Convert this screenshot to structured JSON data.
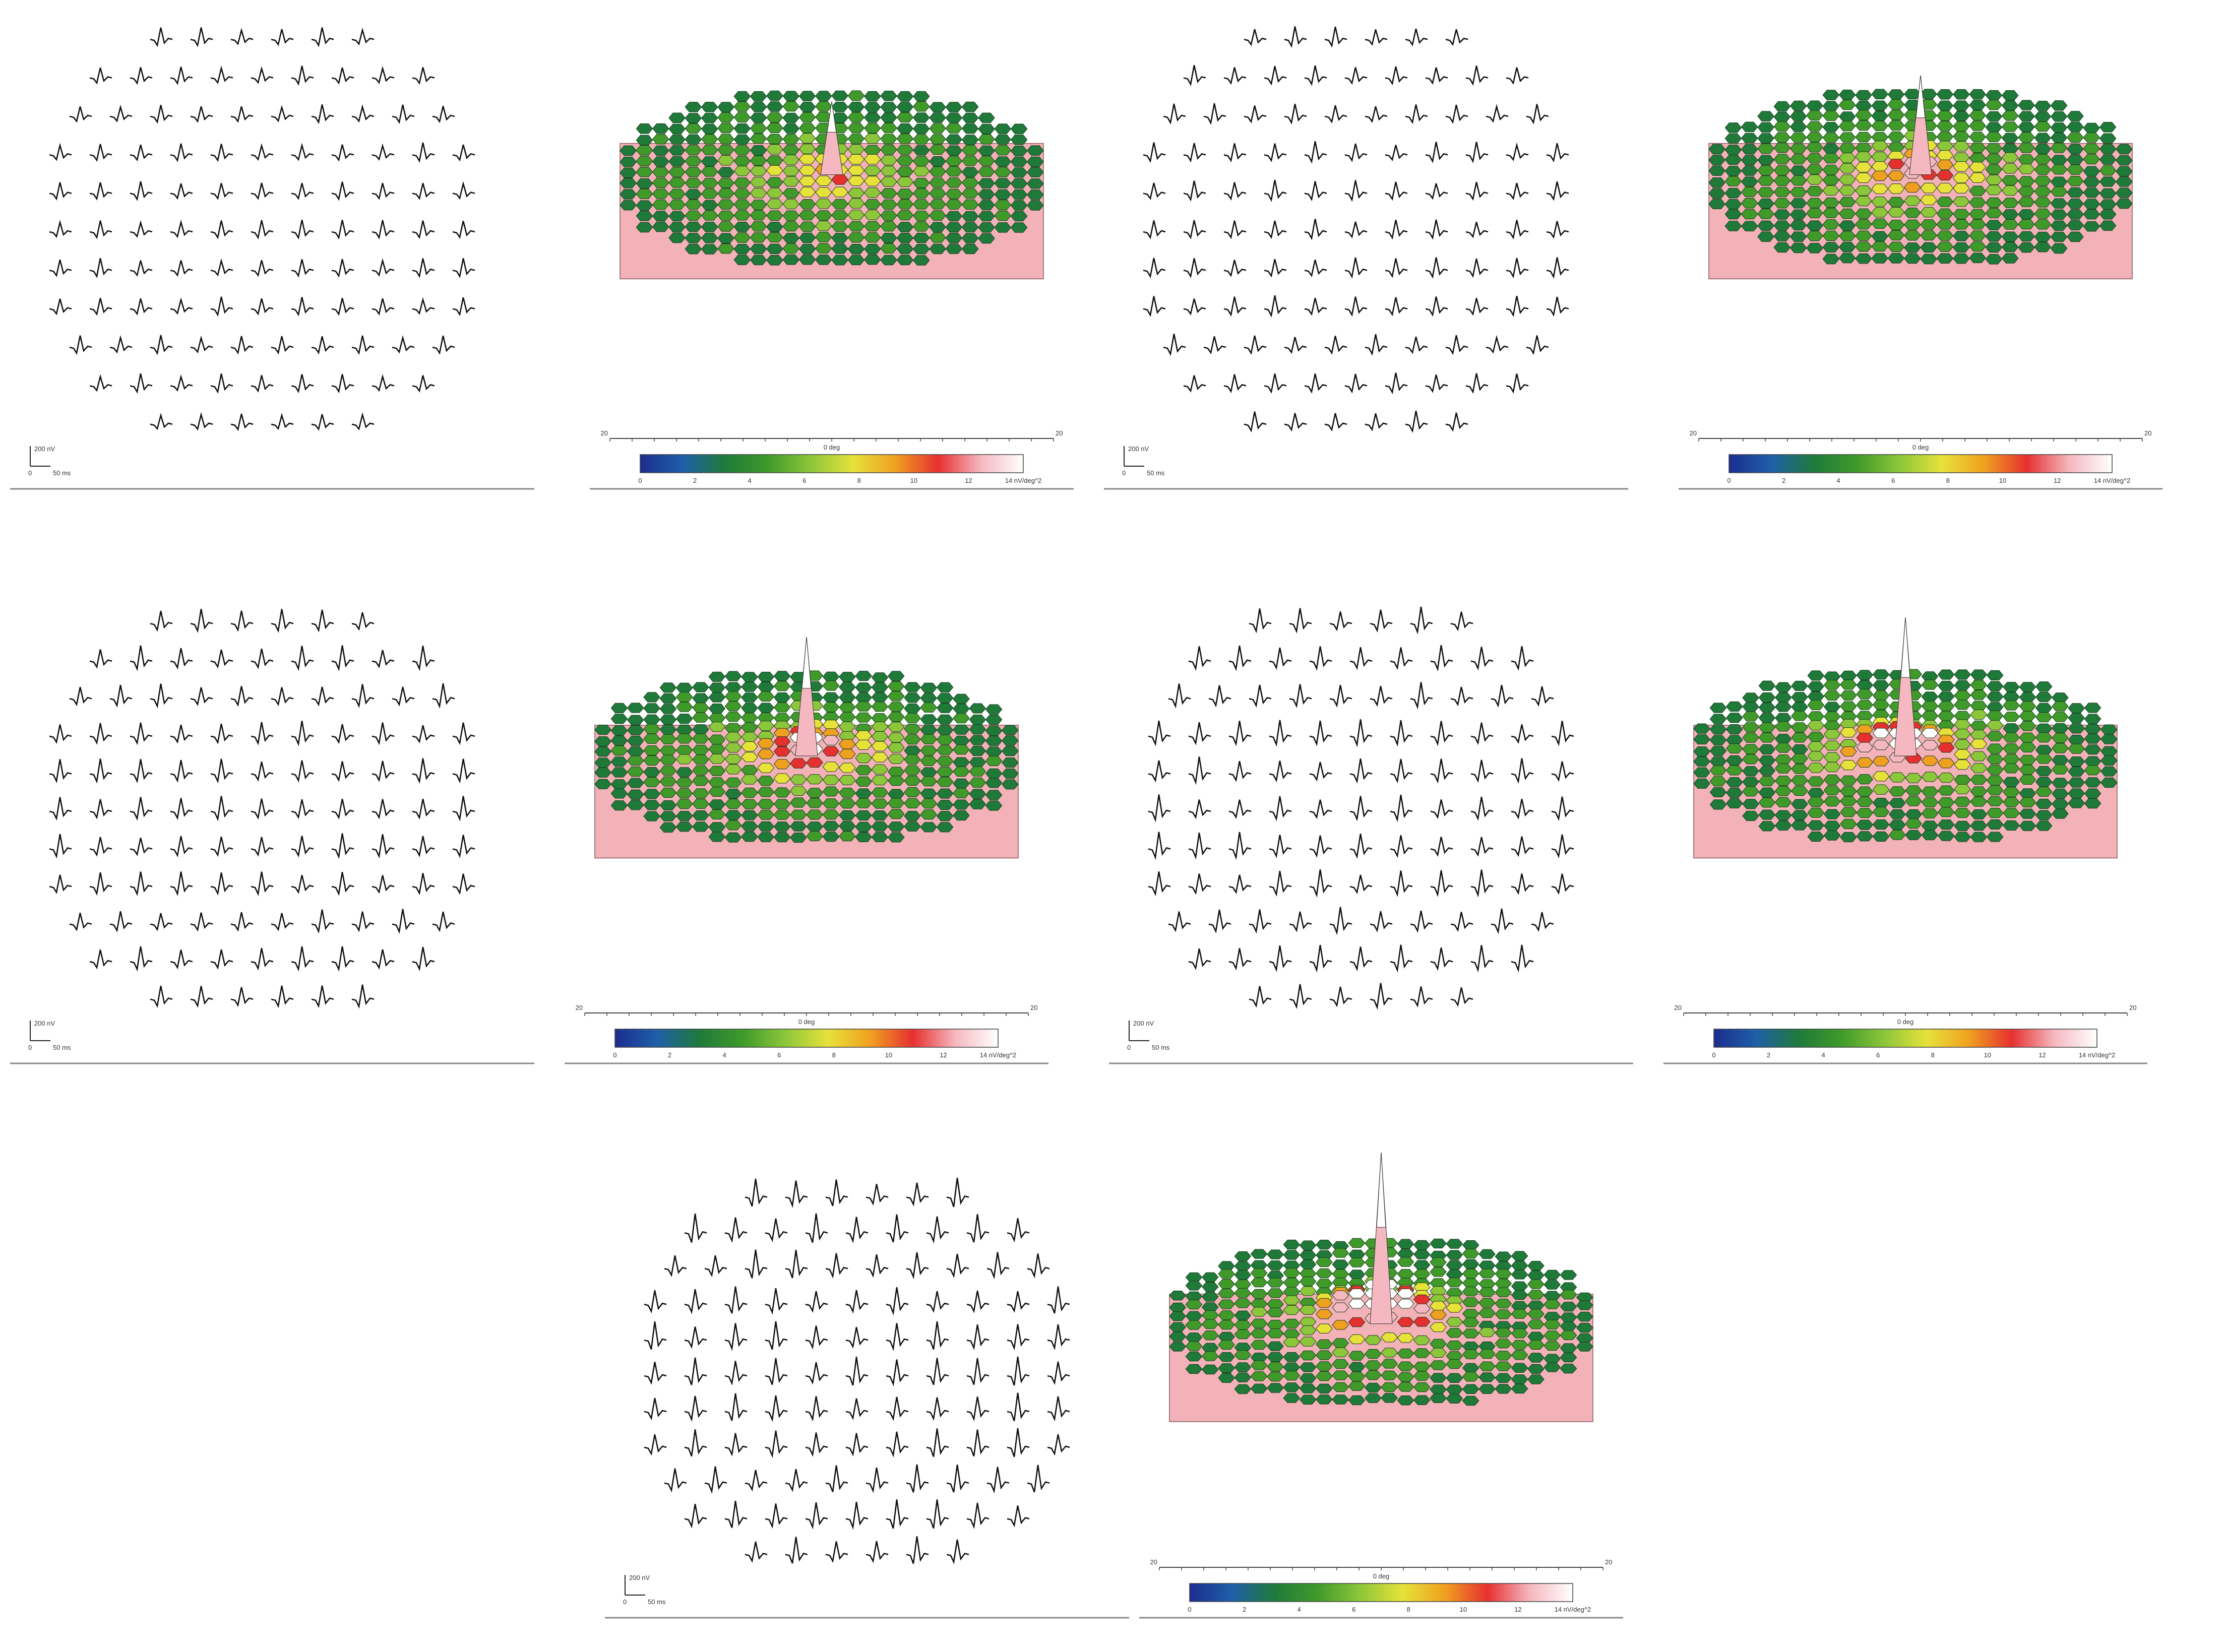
{
  "figure": {
    "scale_bar": {
      "amplitude_label": "200 nV",
      "time_label": "50 ms",
      "origin_label": "0"
    },
    "colorbar": {
      "axis_title": "0 deg",
      "axis_min_label": "20",
      "axis_max_label": "20",
      "ticks": [
        "0",
        "2",
        "4",
        "6",
        "8",
        "10",
        "12"
      ],
      "unit_label": "14 nV/deg^2",
      "colors": [
        "#1b2d8f",
        "#1f5fa8",
        "#1f7a3a",
        "#3f9a2a",
        "#8cc63a",
        "#e6e23a",
        "#f0a020",
        "#e63030",
        "#f5b8c0",
        "#ffffff"
      ]
    },
    "panels": [
      {
        "id": "A",
        "peak": 0.25,
        "waveform_amp": 0.5
      },
      {
        "id": "B",
        "peak": 0.45,
        "waveform_amp": 0.6
      },
      {
        "id": "C",
        "peak": 0.6,
        "waveform_amp": 0.75
      },
      {
        "id": "D",
        "peak": 0.75,
        "waveform_amp": 0.85
      },
      {
        "id": "E",
        "peak": 1.0,
        "waveform_amp": 1.0
      }
    ]
  }
}
